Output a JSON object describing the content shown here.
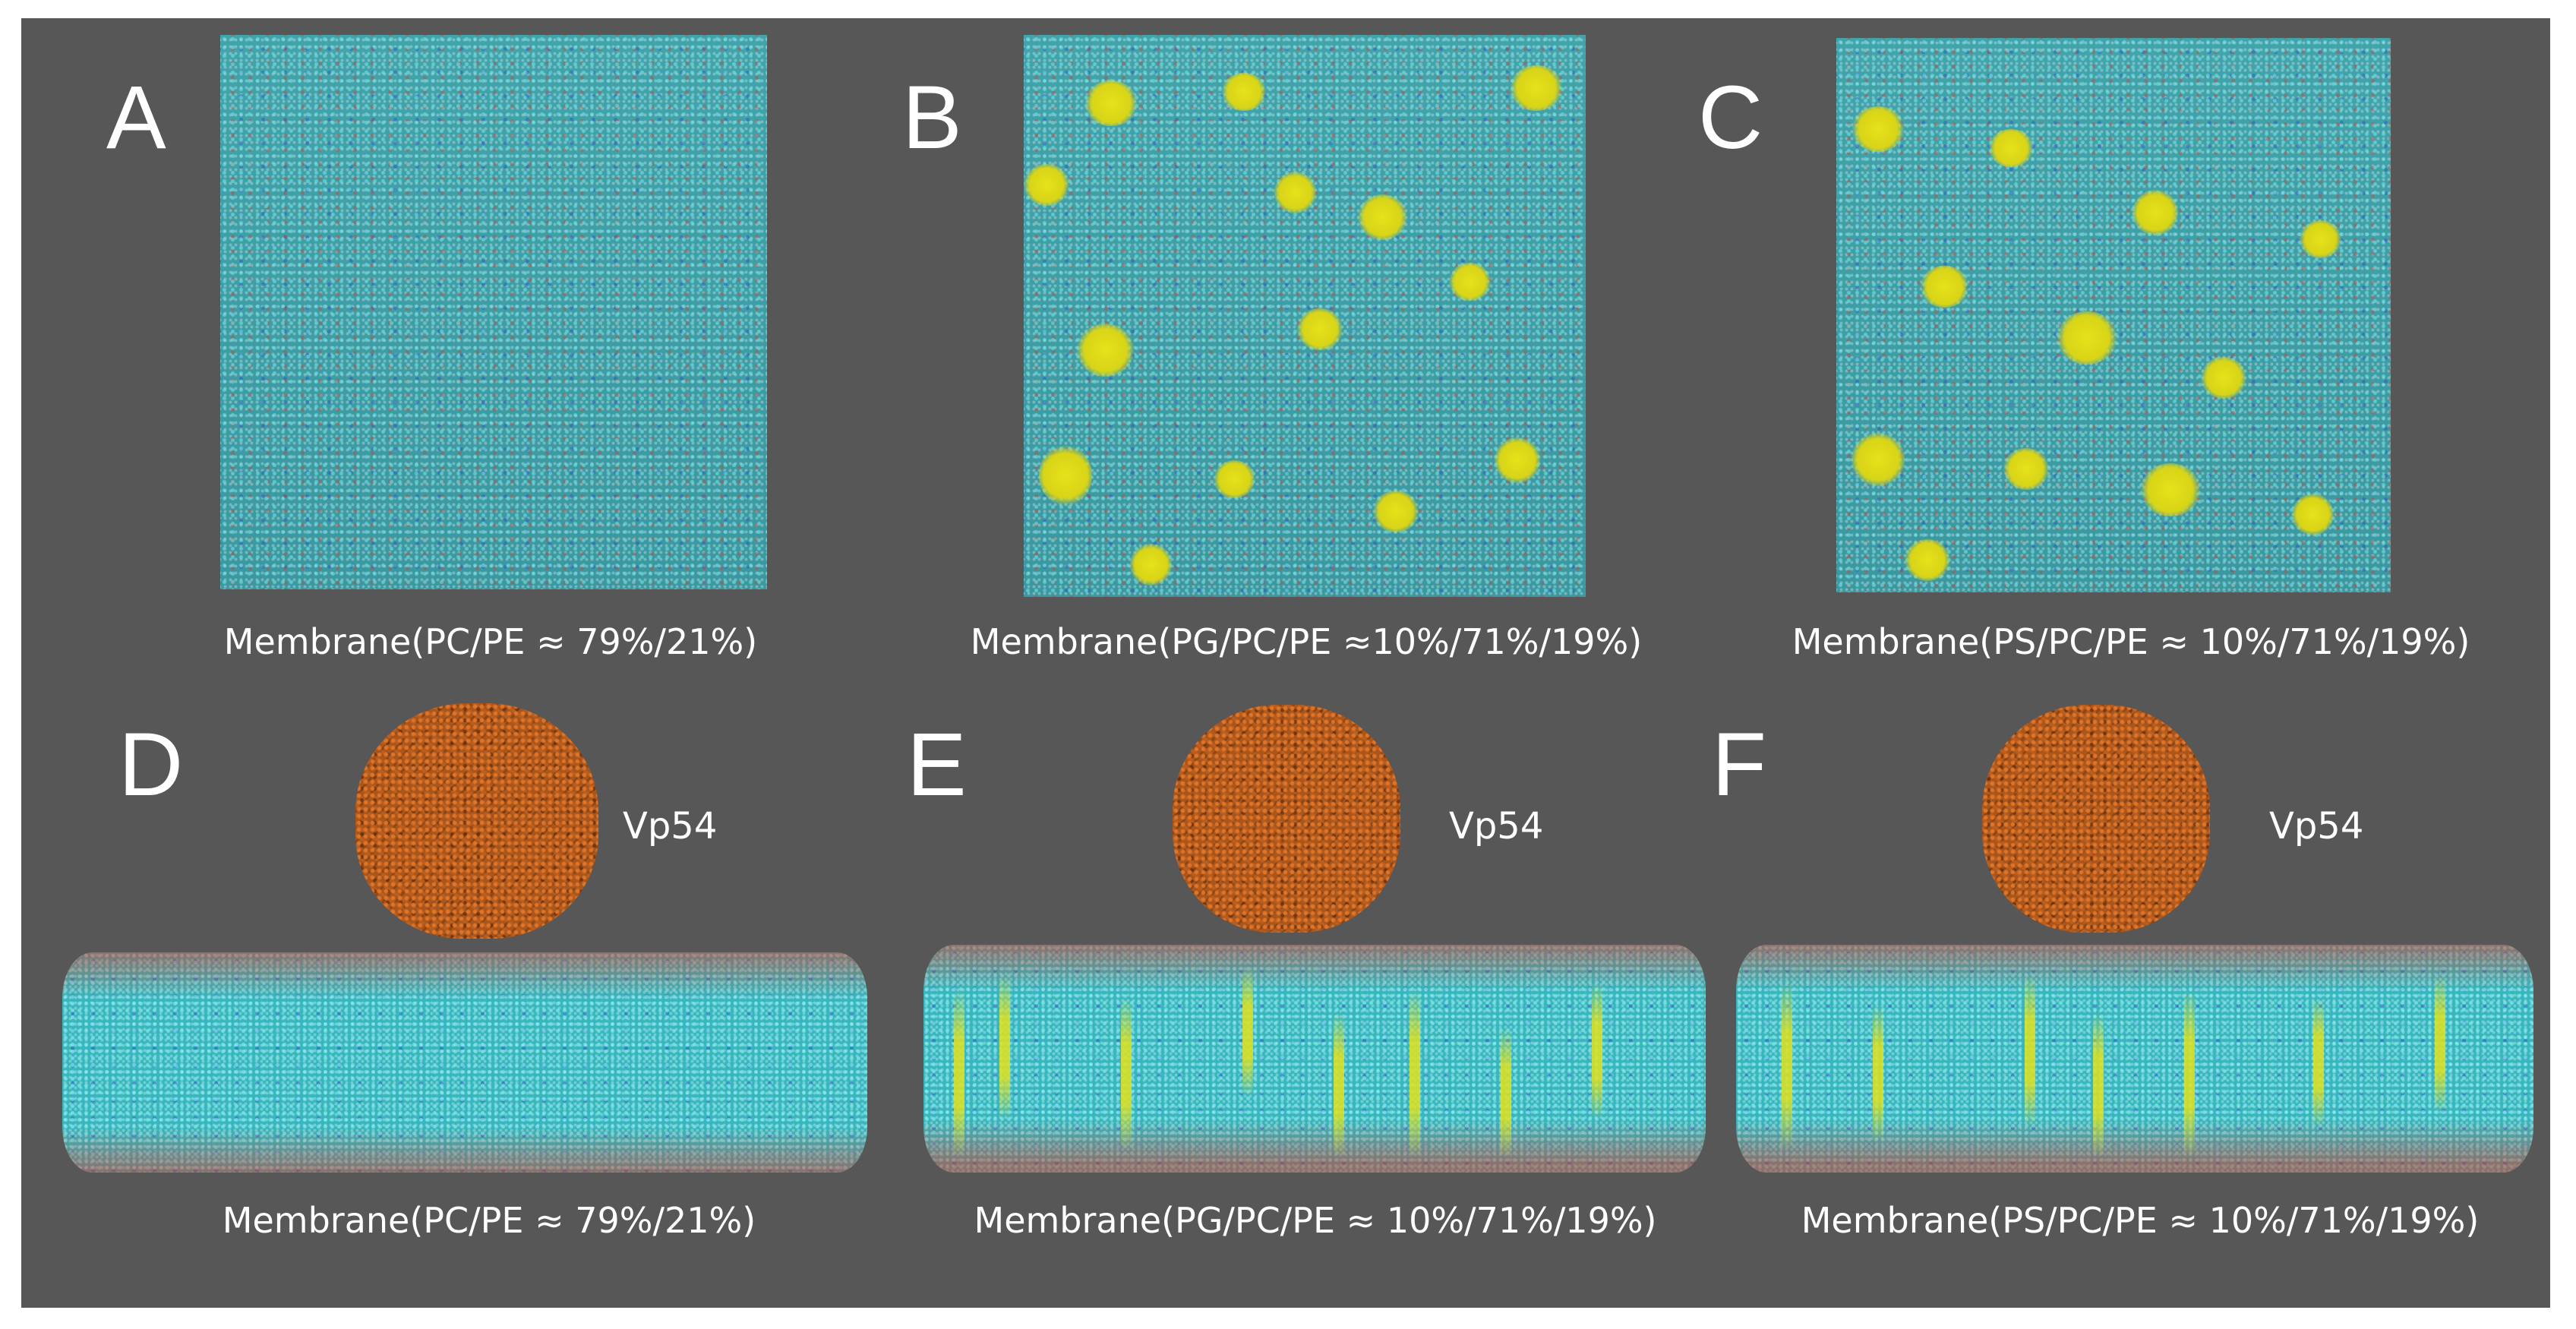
{
  "figure": {
    "background": "#575757",
    "colors": {
      "lipid_cyan": "#3fb3ba",
      "anionic_lipid_yellow": "#e6e21a",
      "protein_orange": "#b35a1c",
      "text": "#ffffff"
    }
  },
  "panels": [
    {
      "letter": "A",
      "view": "top",
      "caption": "Membrane(PC/PE ≈ 79%/21%)",
      "yellow_lipids": false
    },
    {
      "letter": "B",
      "view": "top",
      "caption": "Membrane(PG/PC/PE ≈10%/71%/19%)",
      "yellow_lipids": true
    },
    {
      "letter": "C",
      "view": "top",
      "caption": "Membrane(PS/PC/PE ≈ 10%/71%/19%)",
      "yellow_lipids": true
    },
    {
      "letter": "D",
      "view": "side",
      "caption": "Membrane(PC/PE ≈ 79%/21%)",
      "protein_label": "Vp54",
      "yellow_lipids": false
    },
    {
      "letter": "E",
      "view": "side",
      "caption": "Membrane(PG/PC/PE ≈ 10%/71%/19%)",
      "protein_label": "Vp54",
      "yellow_lipids": true
    },
    {
      "letter": "F",
      "view": "side",
      "caption": "Membrane(PS/PC/PE ≈ 10%/71%/19%)",
      "protein_label": "Vp54",
      "yellow_lipids": true
    }
  ]
}
